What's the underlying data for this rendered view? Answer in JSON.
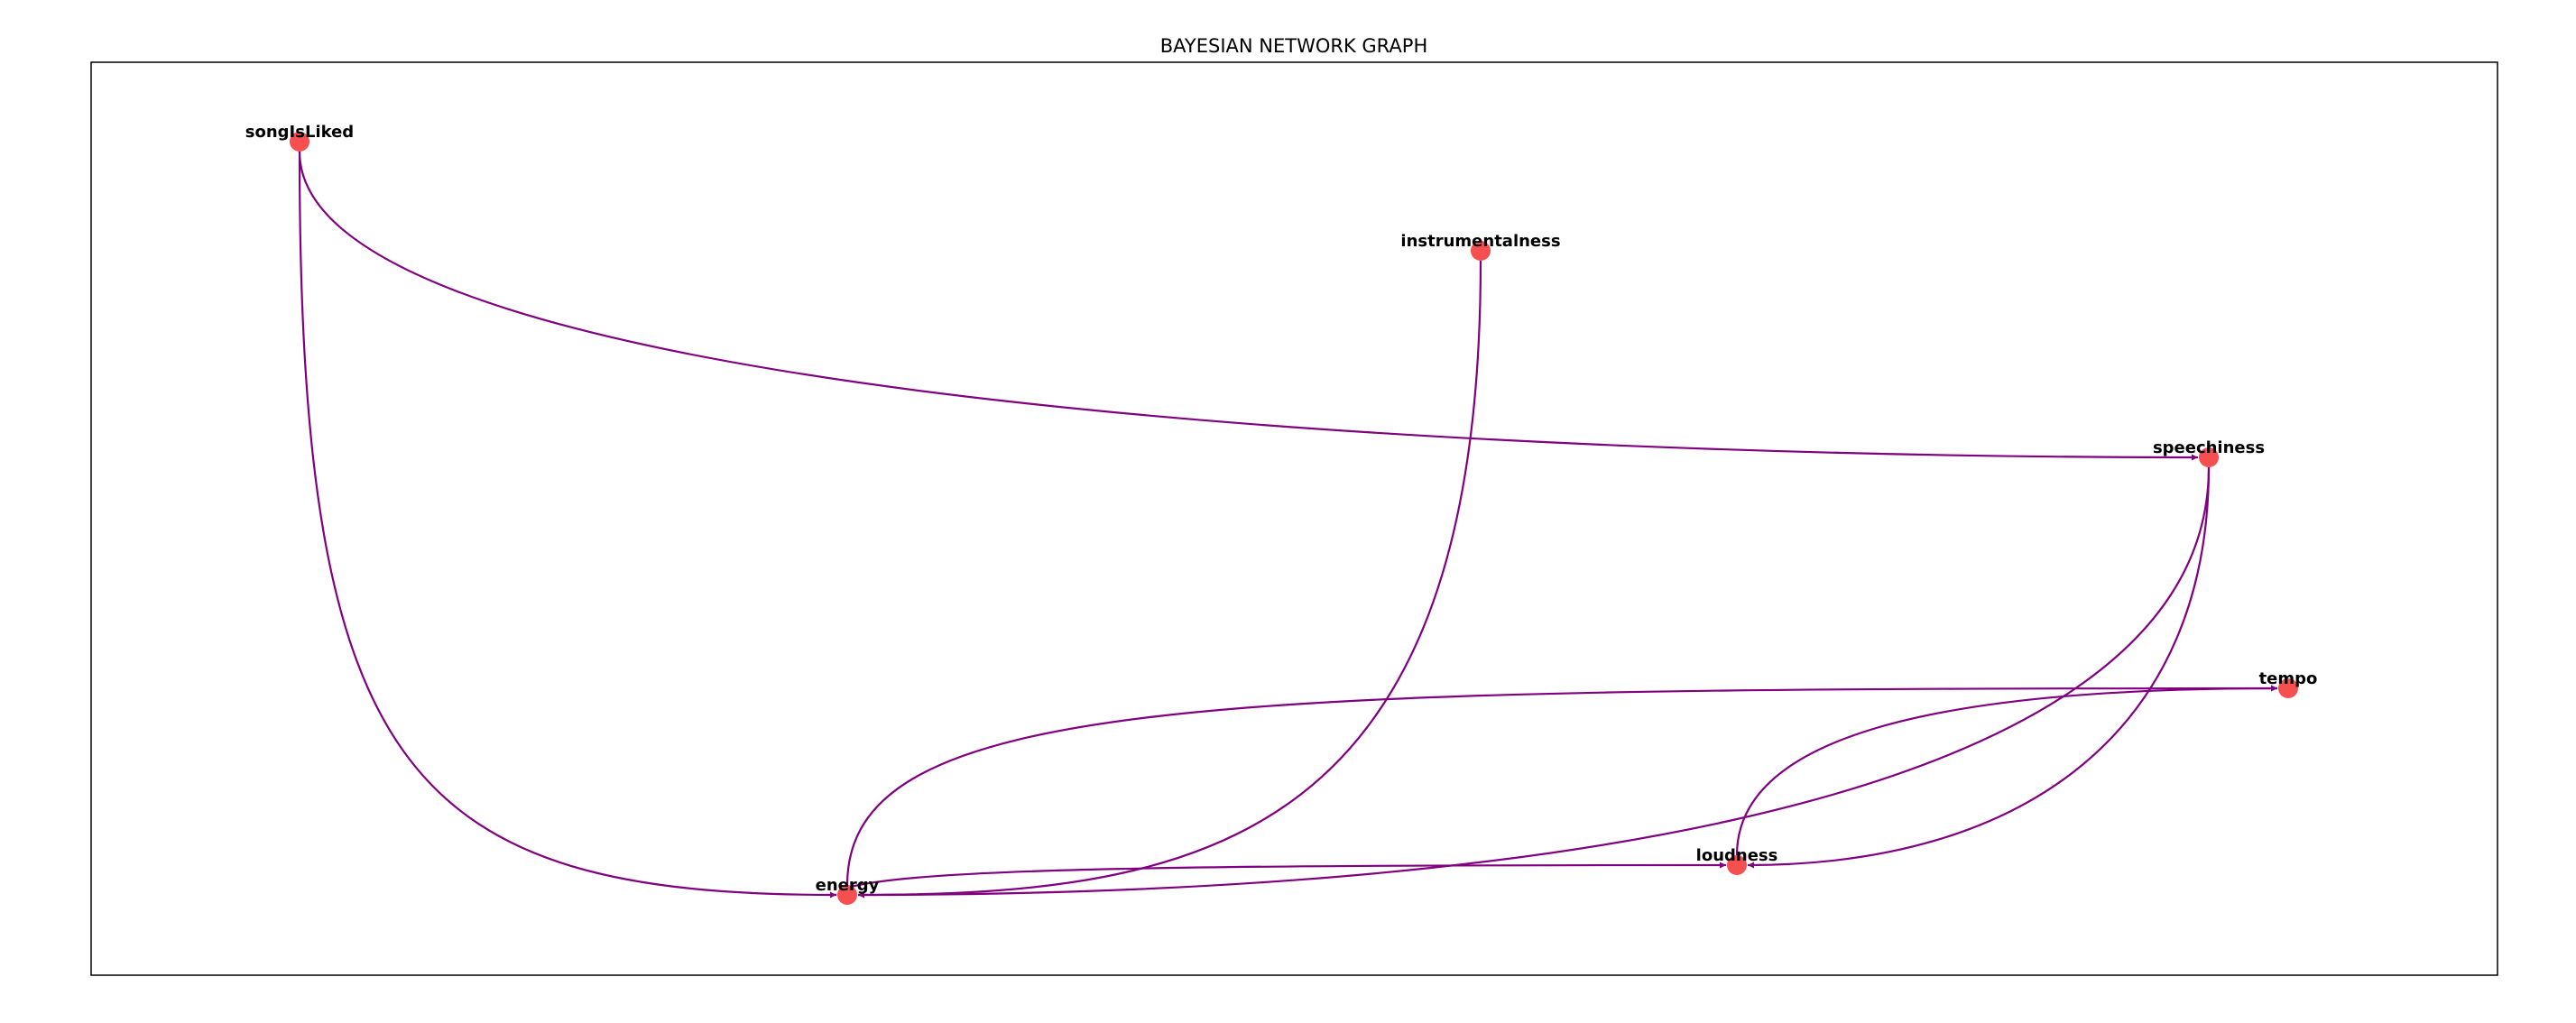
{
  "title": "BAYESIAN NETWORK GRAPH",
  "colors": {
    "node": "#f5504f",
    "edge": "#800080",
    "frame": "#000000",
    "background": "#ffffff"
  },
  "nodes": [
    {
      "id": "songIsLiked",
      "label": "songIsLiked"
    },
    {
      "id": "instrumentalness",
      "label": "instrumentalness"
    },
    {
      "id": "speechiness",
      "label": "speechiness"
    },
    {
      "id": "tempo",
      "label": "tempo"
    },
    {
      "id": "loudness",
      "label": "loudness"
    },
    {
      "id": "energy",
      "label": "energy"
    }
  ],
  "edges": [
    {
      "from": "songIsLiked",
      "to": "speechiness"
    },
    {
      "from": "songIsLiked",
      "to": "energy"
    },
    {
      "from": "instrumentalness",
      "to": "energy"
    },
    {
      "from": "speechiness",
      "to": "energy"
    },
    {
      "from": "speechiness",
      "to": "loudness"
    },
    {
      "from": "energy",
      "to": "tempo"
    },
    {
      "from": "energy",
      "to": "loudness"
    },
    {
      "from": "loudness",
      "to": "tempo"
    }
  ]
}
